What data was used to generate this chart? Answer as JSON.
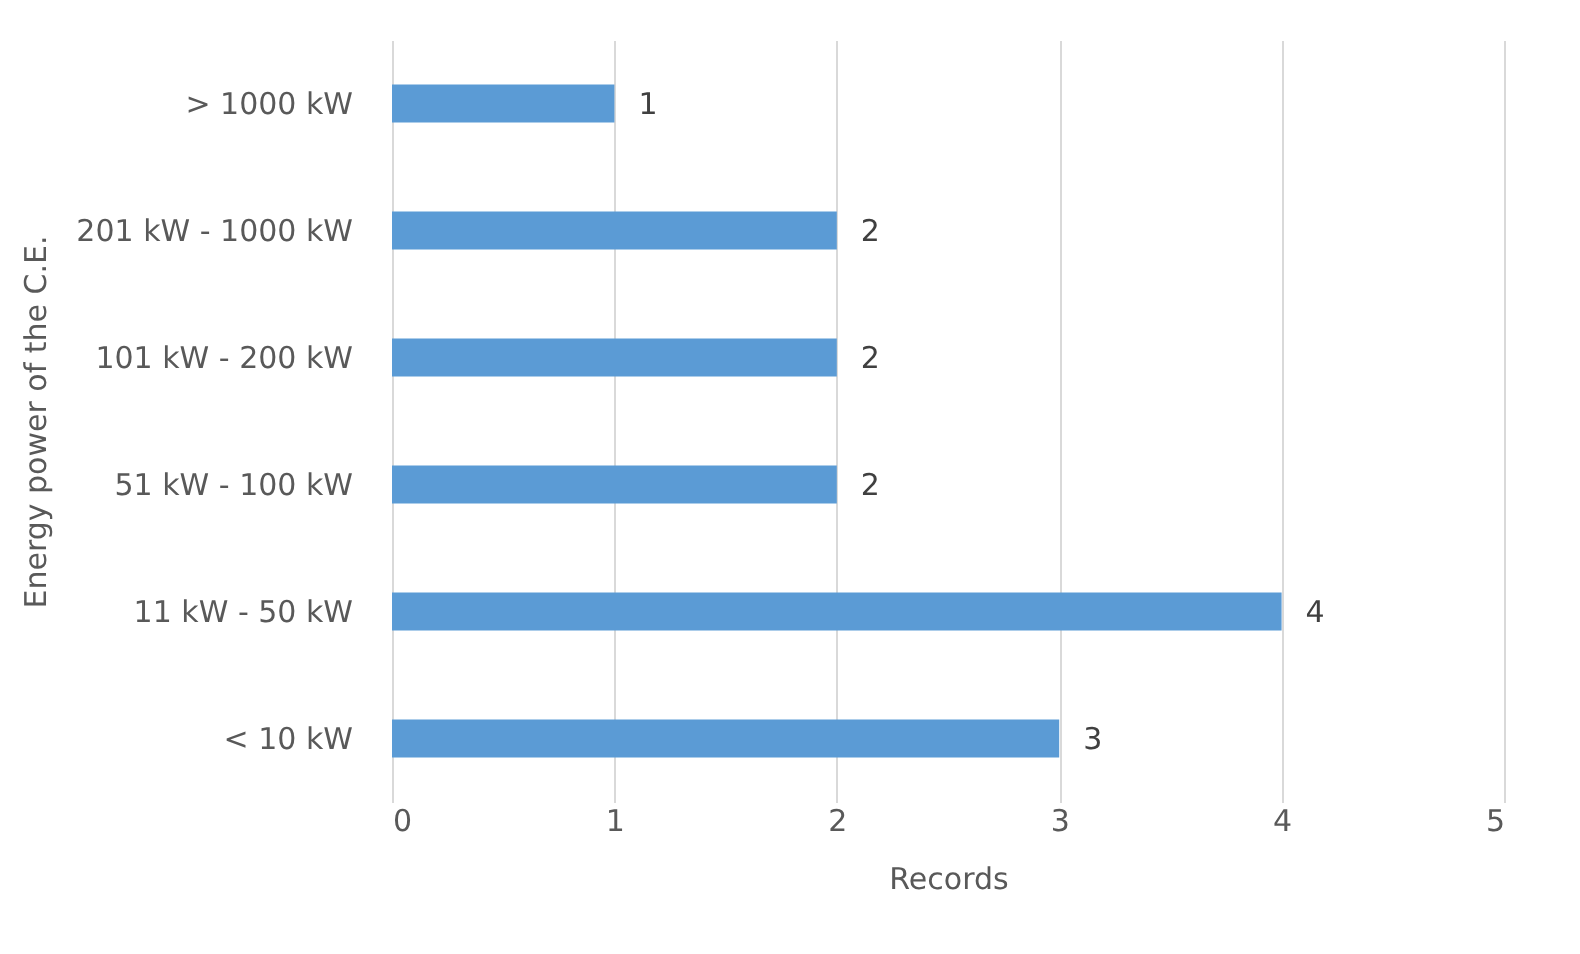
{
  "chart_data": {
    "type": "bar",
    "orientation": "horizontal",
    "xlabel": "Records",
    "ylabel": "Energy power of the C.E.",
    "categories": [
      "> 1000 kW",
      "201 kW - 1000 kW",
      "101 kW - 200 kW",
      "51 kW - 100 kW",
      "11 kW - 50 kW",
      "< 10 kW"
    ],
    "values": [
      1,
      2,
      2,
      2,
      4,
      3
    ],
    "color": "#5b9bd5",
    "xlim": [
      0,
      5
    ],
    "xticks": [
      0,
      1,
      2,
      3,
      4,
      5
    ],
    "grid": "x",
    "data_labels": true
  }
}
